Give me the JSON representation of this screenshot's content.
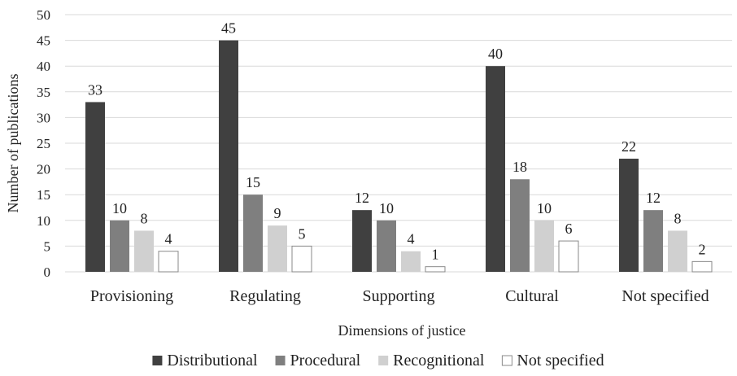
{
  "chart_data": {
    "type": "bar",
    "title": "",
    "xlabel": "Dimensions of justice",
    "ylabel": "Number of publications",
    "ylim": [
      0,
      50
    ],
    "yticks": [
      0,
      5,
      10,
      15,
      20,
      25,
      30,
      35,
      40,
      45,
      50
    ],
    "grid": true,
    "legend_position": "bottom",
    "categories": [
      "Provisioning",
      "Regulating",
      "Supporting",
      "Cultural",
      "Not specified"
    ],
    "series": [
      {
        "name": "Distributional",
        "color": "#404040",
        "values": [
          33,
          45,
          12,
          40,
          22
        ]
      },
      {
        "name": "Procedural",
        "color": "#7f7f7f",
        "values": [
          10,
          15,
          10,
          18,
          12
        ]
      },
      {
        "name": "Recognitional",
        "color": "#d0d0d0",
        "values": [
          8,
          9,
          4,
          10,
          8
        ]
      },
      {
        "name": "Not specified",
        "color": "#ffffff",
        "values": [
          4,
          5,
          1,
          6,
          2
        ]
      }
    ]
  }
}
